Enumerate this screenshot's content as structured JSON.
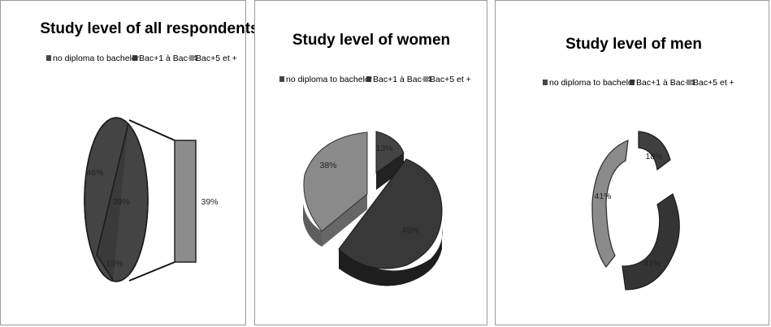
{
  "colors": {
    "no_diploma": "#454545",
    "bac1_4": "#363636",
    "bac5": "#8e8e8e",
    "outline": "#1e1e1e",
    "border": "#9a9a9a"
  },
  "chart_data": [
    {
      "type": "pie",
      "title": "Study level of all respondents",
      "legend": [
        "no diploma to bachelor",
        "Bac+1 à Bac+4",
        "Bac+5 et +"
      ],
      "legend_position": "top",
      "slices": [
        {
          "label": "no diploma to bachelor",
          "value": 46,
          "text": "46%"
        },
        {
          "label": "Bac+1 à Bac+4",
          "value": 39,
          "text": "39%"
        },
        {
          "label": "Bac+5 et +",
          "value": 15,
          "text": "15%"
        }
      ],
      "bar_of_pie": {
        "value": 39,
        "text": "39%"
      }
    },
    {
      "type": "pie",
      "title": "Study level of women",
      "legend": [
        "no diploma to bachelor",
        "Bac+1 à Bac+4",
        "Bac+5 et +"
      ],
      "legend_position": "top",
      "slices": [
        {
          "label": "no diploma to bachelor",
          "value": 13,
          "text": "13%"
        },
        {
          "label": "Bac+1 à Bac+4",
          "value": 49,
          "text": "49%"
        },
        {
          "label": "Bac+5 et +",
          "value": 38,
          "text": "38%"
        }
      ]
    },
    {
      "type": "pie",
      "title": "Study level of men",
      "legend": [
        "no diploma to bachelor",
        "Bac+1 à Bac+4",
        "Bac+5 et +"
      ],
      "legend_position": "top",
      "slices": [
        {
          "label": "no diploma to bachelor",
          "value": 18,
          "text": "18%"
        },
        {
          "label": "Bac+1 à Bac+4",
          "value": 41,
          "text": "41%"
        },
        {
          "label": "Bac+5 et +",
          "value": 41,
          "text": "41%"
        }
      ]
    }
  ]
}
